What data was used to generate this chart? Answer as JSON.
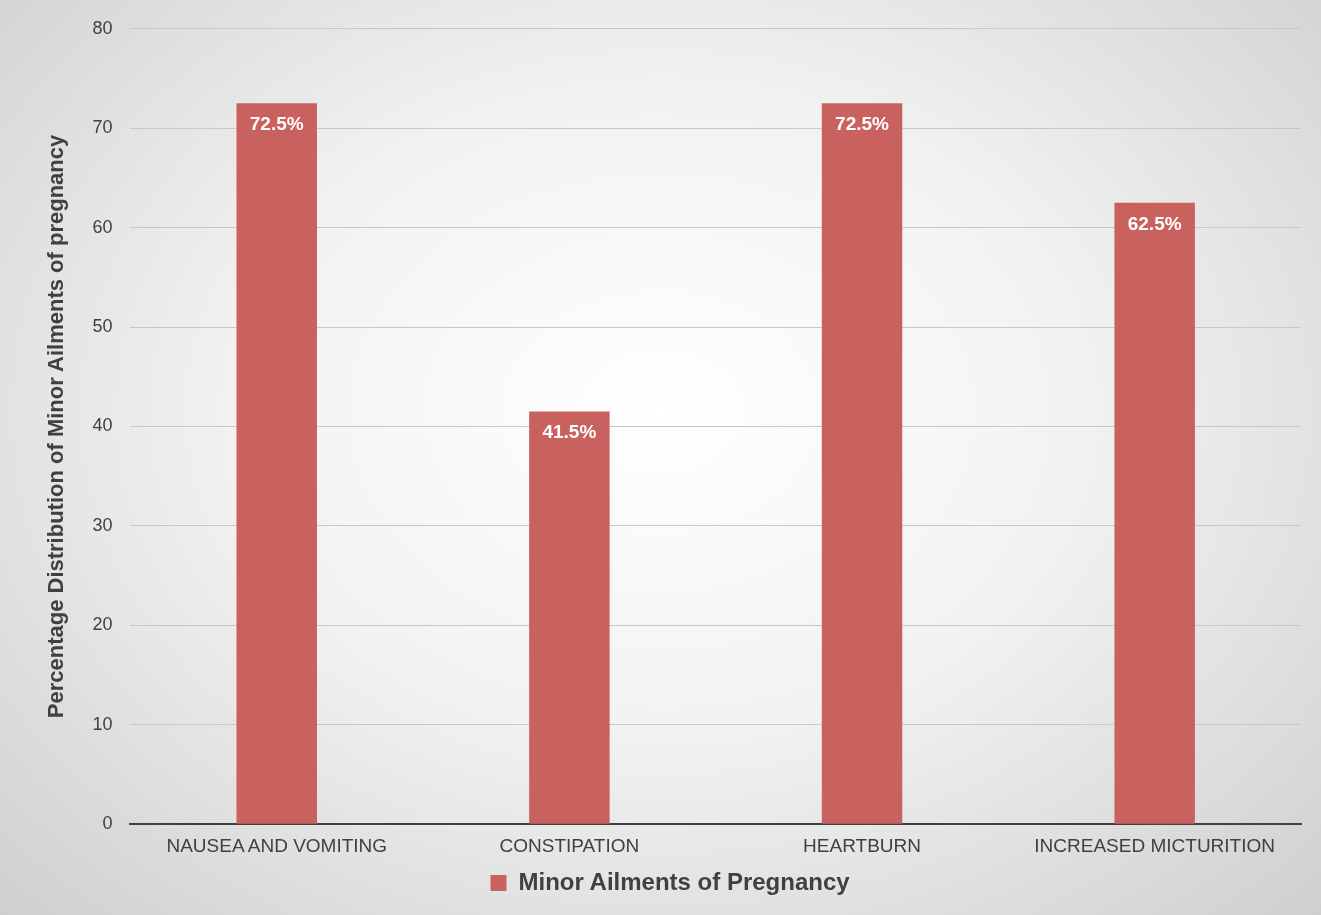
{
  "chart_data": {
    "type": "bar",
    "ylabel": "Percentage Distribution of Minor Ailments of pregnancy",
    "categories": [
      "NAUSEA AND VOMITING",
      "CONSTIPATION",
      "HEARTBURN",
      "INCREASED MICTURITION"
    ],
    "series": [
      {
        "name": "Minor Ailments of Pregnancy",
        "color": "#c9625f",
        "values": [
          72.5,
          41.5,
          72.5,
          62.5
        ],
        "value_labels": [
          "72.5%",
          "41.5%",
          "72.5%",
          "62.5%"
        ]
      }
    ],
    "ylim": [
      0,
      80
    ],
    "yticks": [
      0,
      10,
      20,
      30,
      40,
      50,
      60,
      70,
      80
    ],
    "grid": "y",
    "legend": "bottom"
  }
}
